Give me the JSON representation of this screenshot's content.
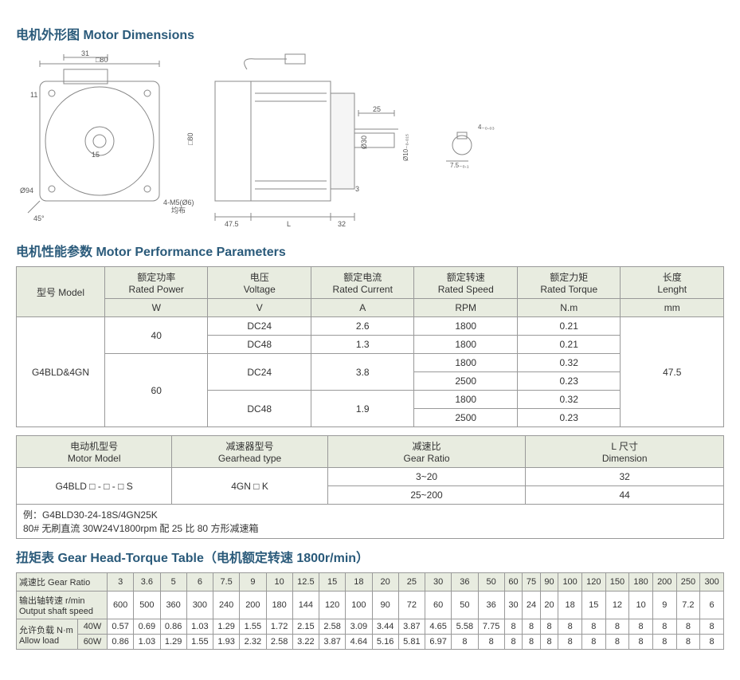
{
  "titles": {
    "dimensions": "电机外形图 Motor Dimensions",
    "performance": "电机性能参数 Motor Performance Parameters",
    "torque": "扭矩表 Gear Head-Torque Table（电机额定转速 1800r/min）"
  },
  "diagram_labels": {
    "d80": "□80",
    "d31": "31",
    "d11": "11",
    "d15": "15",
    "d94": "Ø94",
    "d45": "45°",
    "m5": "4-M5(Ø6)",
    "m5b": "均布",
    "d80b": "□80",
    "d475": "47.5",
    "dL": "L",
    "d32": "32",
    "d3": "3",
    "d25": "25",
    "d30": "Ø30",
    "d10": "Ø10₋₀.₀₁₅",
    "d75": "7.5₋₀.₁",
    "d4": "4₋₀.₀₃"
  },
  "perf_headers": {
    "model_cn": "型号 Model",
    "power_cn": "额定功率",
    "power_en": "Rated Power",
    "voltage_cn": "电压",
    "voltage_en": "Voltage",
    "current_cn": "额定电流",
    "current_en": "Rated Current",
    "speed_cn": "额定转速",
    "speed_en": "Rated Speed",
    "torque_cn": "额定力矩",
    "torque_en": "Rated Torque",
    "length_cn": "长度",
    "length_en": "Lenght",
    "unit_w": "W",
    "unit_v": "V",
    "unit_a": "A",
    "unit_rpm": "RPM",
    "unit_nm": "N.m",
    "unit_mm": "mm"
  },
  "perf_data": {
    "model": "G4BLD&4GN",
    "length": "47.5",
    "rows": [
      {
        "power": "40",
        "voltage": "DC24",
        "current": "2.6",
        "speed": "1800",
        "torque": "0.21"
      },
      {
        "power": "40",
        "voltage": "DC48",
        "current": "1.3",
        "speed": "1800",
        "torque": "0.21"
      },
      {
        "power": "60",
        "voltage": "DC24",
        "current": "3.8",
        "speed": "1800",
        "torque": "0.32"
      },
      {
        "power": "60",
        "voltage": "DC24",
        "current": "3.8",
        "speed": "2500",
        "torque": "0.23"
      },
      {
        "power": "60",
        "voltage": "DC48",
        "current": "1.9",
        "speed": "1800",
        "torque": "0.32"
      },
      {
        "power": "60",
        "voltage": "DC48",
        "current": "1.9",
        "speed": "2500",
        "torque": "0.23"
      }
    ]
  },
  "gear_headers": {
    "motor_cn": "电动机型号",
    "motor_en": "Motor Model",
    "gearhead_cn": "减速器型号",
    "gearhead_en": "Gearhead type",
    "ratio_cn": "减速比",
    "ratio_en": "Gear Ratio",
    "dim_cn": "L 尺寸",
    "dim_en": "Dimension"
  },
  "gear_data": {
    "motor": "G4BLD □ - □ - □ S",
    "gearhead": "4GN □ K",
    "ratio1": "3~20",
    "dim1": "32",
    "ratio2": "25~200",
    "dim2": "44",
    "note1": "例：G4BLD30-24-18S/4GN25K",
    "note2": "80# 无刷直流 30W24V1800rpm 配 25 比 80 方形减速箱"
  },
  "torque_headers": {
    "ratio": "减速比 Gear Ratio",
    "output_cn": "输出轴转速 r/min",
    "output_en": "Output shaft speed",
    "load_cn": "允许负载 N·m",
    "load_en": "Allow load",
    "w40": "40W",
    "w60": "60W"
  },
  "torque_ratios": [
    "3",
    "3.6",
    "5",
    "6",
    "7.5",
    "9",
    "10",
    "12.5",
    "15",
    "18",
    "20",
    "25",
    "30",
    "36",
    "50",
    "60",
    "75",
    "90",
    "100",
    "120",
    "150",
    "180",
    "200",
    "250",
    "300"
  ],
  "torque_speeds": [
    "600",
    "500",
    "360",
    "300",
    "240",
    "200",
    "180",
    "144",
    "120",
    "100",
    "90",
    "72",
    "60",
    "50",
    "36",
    "30",
    "24",
    "20",
    "18",
    "15",
    "12",
    "10",
    "9",
    "7.2",
    "6"
  ],
  "torque_40w": [
    "0.57",
    "0.69",
    "0.86",
    "1.03",
    "1.29",
    "1.55",
    "1.72",
    "2.15",
    "2.58",
    "3.09",
    "3.44",
    "3.87",
    "4.65",
    "5.58",
    "7.75",
    "8",
    "8",
    "8",
    "8",
    "8",
    "8",
    "8",
    "8",
    "8",
    "8"
  ],
  "torque_60w": [
    "0.86",
    "1.03",
    "1.29",
    "1.55",
    "1.93",
    "2.32",
    "2.58",
    "3.22",
    "3.87",
    "4.64",
    "5.16",
    "5.81",
    "6.97",
    "8",
    "8",
    "8",
    "8",
    "8",
    "8",
    "8",
    "8",
    "8",
    "8",
    "8",
    "8"
  ],
  "colors": {
    "title": "#2a5a7a",
    "header_bg": "#e8ece0",
    "border": "#999999",
    "diagram_stroke": "#888888"
  }
}
